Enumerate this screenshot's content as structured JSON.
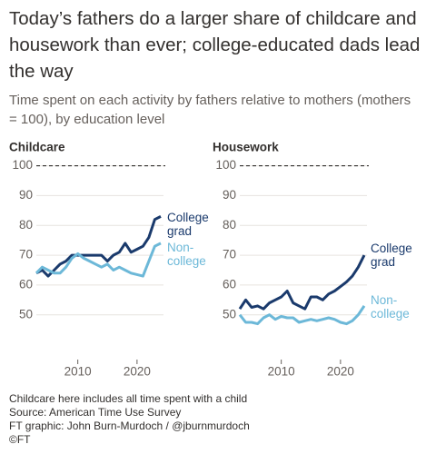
{
  "header": {
    "title": "Today’s fathers do a larger share of childcare and housework than ever; college-educated dads lead the way",
    "subtitle": "Time spent on each activity by fathers relative to mothers (mothers = 100), by education level"
  },
  "chart_data": [
    {
      "type": "line",
      "title": "Childcare",
      "x": [
        2003,
        2004,
        2005,
        2006,
        2007,
        2008,
        2009,
        2010,
        2011,
        2012,
        2013,
        2014,
        2015,
        2016,
        2017,
        2018,
        2019,
        2020,
        2021,
        2022,
        2023,
        2024
      ],
      "series": [
        {
          "name": "College grad",
          "color": "#1a3a6c",
          "values": [
            64,
            65,
            63,
            65,
            67,
            68,
            70,
            70,
            70,
            70,
            70,
            70,
            68,
            70,
            71,
            74,
            71,
            72,
            73,
            76,
            82,
            83
          ]
        },
        {
          "name": "Non-college",
          "color": "#6cb8d8",
          "values": [
            64,
            66,
            65,
            64,
            64,
            66,
            69,
            70.5,
            69,
            68,
            67,
            66,
            67,
            65,
            66,
            65,
            64,
            63.5,
            63,
            68,
            73,
            74
          ]
        }
      ],
      "xlim": [
        2003,
        2026
      ],
      "xticks": [
        2010,
        2020
      ],
      "ylim": [
        35,
        102
      ],
      "yticks": [
        50,
        60,
        70,
        80,
        90,
        100
      ],
      "reference_line": 100,
      "grid": true
    },
    {
      "type": "line",
      "title": "Housework",
      "x": [
        2003,
        2004,
        2005,
        2006,
        2007,
        2008,
        2009,
        2010,
        2011,
        2012,
        2013,
        2014,
        2015,
        2016,
        2017,
        2018,
        2019,
        2020,
        2021,
        2022,
        2023,
        2024
      ],
      "series": [
        {
          "name": "College grad",
          "color": "#1a3a6c",
          "values": [
            52,
            55,
            52.5,
            53,
            52,
            54,
            55,
            56,
            58,
            54,
            53,
            52,
            56,
            56,
            55,
            57,
            58,
            59.5,
            61,
            63,
            66,
            70
          ]
        },
        {
          "name": "Non-college",
          "color": "#6cb8d8",
          "values": [
            50,
            47.5,
            47.5,
            47,
            49,
            50,
            48.5,
            49.5,
            49,
            49,
            47.5,
            48,
            48.5,
            48,
            48.5,
            49,
            48.5,
            47.5,
            47,
            48,
            50,
            53
          ]
        }
      ],
      "xlim": [
        2003,
        2026
      ],
      "xticks": [
        2010,
        2020
      ],
      "ylim": [
        35,
        102
      ],
      "yticks": [
        50,
        60,
        70,
        80,
        90,
        100
      ],
      "reference_line": 100,
      "grid": true
    }
  ],
  "footer": {
    "note": "Childcare here includes all time spent with a child",
    "source": "Source: American Time Use Survey",
    "credit": "FT graphic: John Burn-Murdoch / @jburnmurdoch",
    "copyright": "©FT"
  }
}
